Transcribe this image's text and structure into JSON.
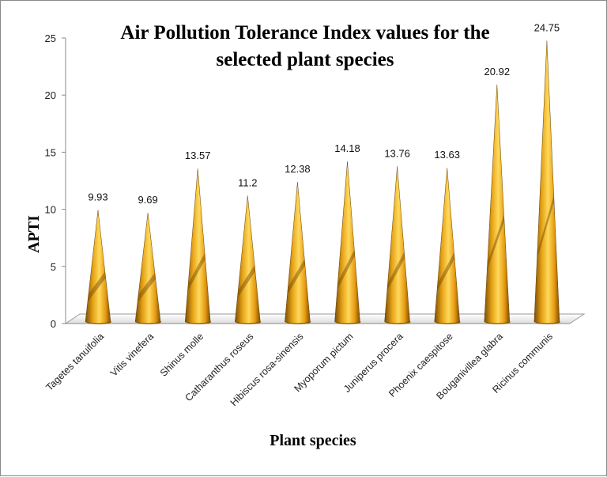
{
  "chart_data": {
    "type": "bar",
    "bar_shape": "3d-cone",
    "title_lines": [
      "Air Pollution Tolerance Index values for the",
      "selected plant species"
    ],
    "xlabel": "Plant species",
    "ylabel": "APTI",
    "ylim": [
      0,
      25
    ],
    "yticks": [
      0,
      5,
      10,
      15,
      20,
      25
    ],
    "grid": false,
    "legend": "none",
    "categories": [
      "Tagetes tanuifolia",
      "Vitis vinefera",
      "Shinus molle",
      "Catharanthus roseus",
      "Hibiscus rosa-sinensis",
      "Myoporum pictum",
      "Juniperus procera",
      "Phoenix caespitose",
      "Bouganivillea glabra",
      "Ricinus communis"
    ],
    "values": [
      9.93,
      9.69,
      13.57,
      11.2,
      12.38,
      14.18,
      13.76,
      13.63,
      20.92,
      24.75
    ],
    "value_labels": [
      "9.93",
      "9.69",
      "13.57",
      "11.2",
      "12.38",
      "14.18",
      "13.76",
      "13.63",
      "20.92",
      "24.75"
    ],
    "colors": {
      "bar_light": "#FFD24A",
      "bar_mid": "#E99E12",
      "bar_dark": "#8A5A06",
      "floor": "#F4F4F4",
      "floor_edge": "#9A9A9A"
    }
  }
}
